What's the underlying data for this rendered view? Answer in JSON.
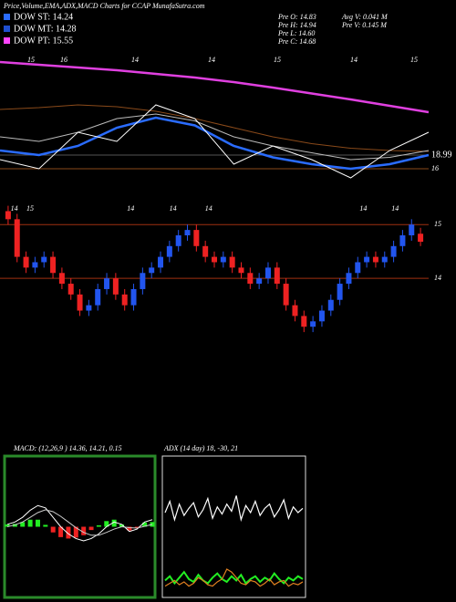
{
  "header": {
    "title": "Price,Volume,EMA,ADX,MACD Charts for CCAP MunafaSutra.com",
    "legend": [
      {
        "label": "DOW ST: 14.24",
        "color": "#2a6cff"
      },
      {
        "label": "DOW MT: 14.28",
        "color": "#1f4fd0"
      },
      {
        "label": "DOW PT: 15.55",
        "color": "#ff44ff"
      }
    ],
    "stats": [
      "Pre  O: 14.83",
      "Pre  H: 14.94",
      "Pre  L: 14.60",
      "Pre  C: 14.68",
      "Avg V: 0.041 M",
      "Pre  V: 0.145 M"
    ]
  },
  "chart_data": [
    {
      "type": "line",
      "x_labels": [
        "15",
        "16",
        "14",
        "14",
        "15",
        "14",
        "15"
      ],
      "categories": [
        null,
        null,
        null,
        null,
        null,
        null,
        null,
        null,
        null,
        null,
        null,
        null
      ],
      "ylim": [
        12,
        41
      ],
      "reference_lines": [
        18.99,
        16
      ],
      "series": [
        {
          "color": "#e040e0",
          "width": 2.5,
          "values": [
            39.4,
            38.8,
            38.2,
            37.6,
            36.8,
            36,
            35,
            33.8,
            32.5,
            31.2,
            29.8,
            28.4
          ]
        },
        {
          "color": "#8a4a1a",
          "width": 1,
          "values": [
            29,
            29.4,
            30,
            29.6,
            28.6,
            27,
            25,
            23,
            21.5,
            20.5,
            20,
            19.8
          ]
        },
        {
          "color": "#bbbbbb",
          "width": 1,
          "values": [
            23,
            22,
            24,
            27,
            28,
            26.5,
            23,
            21,
            19.5,
            18,
            18.5,
            20
          ]
        },
        {
          "color": "#2a6cff",
          "width": 2.5,
          "values": [
            20,
            19,
            21,
            25,
            27.2,
            25.5,
            21,
            18.5,
            17,
            16,
            17,
            19
          ]
        },
        {
          "color": "#ffffff",
          "width": 1,
          "values": [
            18,
            16,
            24,
            22,
            30,
            27,
            17,
            21,
            18,
            14,
            20,
            24
          ]
        }
      ]
    },
    {
      "type": "candlestick",
      "x_labels": [
        "14",
        "15",
        "14",
        "14",
        "14",
        "14",
        "14"
      ],
      "categories": [
        null,
        null,
        null,
        null,
        null,
        null,
        null,
        null,
        null,
        null,
        null,
        null,
        null,
        null,
        null,
        null,
        null,
        null,
        null,
        null,
        null,
        null,
        null,
        null,
        null,
        null,
        null,
        null,
        null,
        null,
        null,
        null,
        null,
        null,
        null,
        null,
        null,
        null,
        null,
        null,
        null,
        null,
        null,
        null,
        null,
        null,
        null
      ],
      "ylim": [
        12.9,
        15.36
      ],
      "yticks": [
        15,
        14
      ],
      "up_color": "#2255ee",
      "down_color": "#ee2222",
      "open": [
        15.25,
        15.1,
        14.4,
        14.2,
        14.3,
        14.4,
        14.1,
        13.9,
        13.7,
        13.4,
        13.5,
        13.8,
        14.0,
        13.7,
        13.5,
        13.8,
        14.1,
        14.2,
        14.4,
        14.6,
        14.8,
        14.9,
        14.6,
        14.4,
        14.3,
        14.4,
        14.2,
        14.1,
        13.9,
        14.0,
        14.2,
        13.9,
        13.5,
        13.3,
        13.1,
        13.2,
        13.4,
        13.6,
        13.9,
        14.1,
        14.3,
        14.4,
        14.3,
        14.4,
        14.6,
        14.8,
        14.83
      ],
      "high": [
        15.35,
        15.2,
        14.5,
        14.4,
        14.5,
        14.5,
        14.2,
        14.0,
        13.8,
        13.6,
        13.9,
        14.1,
        14.1,
        13.8,
        13.9,
        14.2,
        14.3,
        14.5,
        14.7,
        14.9,
        15.0,
        15.0,
        14.7,
        14.5,
        14.5,
        14.5,
        14.3,
        14.2,
        14.1,
        14.3,
        14.3,
        14.0,
        13.6,
        13.4,
        13.3,
        13.5,
        13.7,
        14.0,
        14.2,
        14.4,
        14.5,
        14.5,
        14.5,
        14.7,
        14.9,
        15.1,
        14.94
      ],
      "low": [
        15.0,
        14.3,
        14.1,
        14.1,
        14.2,
        14.0,
        13.8,
        13.6,
        13.3,
        13.3,
        13.4,
        13.7,
        13.6,
        13.4,
        13.4,
        13.7,
        14.0,
        14.1,
        14.3,
        14.5,
        14.7,
        14.5,
        14.3,
        14.2,
        14.2,
        14.1,
        14.0,
        13.8,
        13.8,
        13.9,
        13.8,
        13.4,
        13.2,
        13.0,
        13.0,
        13.1,
        13.3,
        13.5,
        13.8,
        14.0,
        14.2,
        14.2,
        14.2,
        14.3,
        14.5,
        14.7,
        14.6
      ],
      "close": [
        15.1,
        14.4,
        14.2,
        14.3,
        14.4,
        14.1,
        13.9,
        13.7,
        13.4,
        13.5,
        13.8,
        14.0,
        13.7,
        13.5,
        13.8,
        14.1,
        14.2,
        14.4,
        14.6,
        14.8,
        14.9,
        14.6,
        14.4,
        14.3,
        14.4,
        14.2,
        14.1,
        13.9,
        14.0,
        14.2,
        13.9,
        13.5,
        13.3,
        13.1,
        13.2,
        13.4,
        13.6,
        13.9,
        14.1,
        14.3,
        14.4,
        14.3,
        14.4,
        14.6,
        14.8,
        15.0,
        14.68
      ]
    },
    {
      "type": "macd",
      "title": "MACD: (12,26,9 ) 14.36, 14.21, 0.15",
      "categories": [
        null,
        null,
        null,
        null,
        null,
        null,
        null,
        null,
        null,
        null,
        null,
        null,
        null,
        null,
        null,
        null,
        null,
        null,
        null,
        null
      ],
      "ylim": [
        -1.5,
        1.5
      ],
      "series": [
        {
          "color": "#ffffff",
          "values": [
            0.05,
            0.1,
            0.2,
            0.35,
            0.45,
            0.4,
            0.2,
            0,
            -0.15,
            -0.25,
            -0.3,
            -0.25,
            -0.15,
            0,
            0.1,
            0.05,
            -0.1,
            -0.05,
            0.1,
            0.15
          ]
        },
        {
          "color": "#cccccc",
          "values": [
            0,
            0.04,
            0.1,
            0.2,
            0.3,
            0.36,
            0.32,
            0.22,
            0.1,
            -0.02,
            -0.12,
            -0.18,
            -0.18,
            -0.12,
            -0.05,
            0,
            -0.02,
            -0.03,
            0.01,
            0.05
          ]
        }
      ],
      "histogram": [
        0.05,
        0.06,
        0.1,
        0.15,
        0.15,
        0.04,
        -0.12,
        -0.22,
        -0.25,
        -0.23,
        -0.18,
        -0.07,
        0.03,
        0.12,
        0.15,
        0.05,
        -0.08,
        -0.02,
        0.09,
        0.1
      ],
      "up_color": "#22ee22",
      "down_color": "#ee2222"
    },
    {
      "type": "adx",
      "title": "ADX                (14  day) 18, -30,  21",
      "categories": [
        null,
        null,
        null,
        null,
        null,
        null,
        null,
        null,
        null,
        null,
        null,
        null,
        null,
        null,
        null,
        null,
        null,
        null,
        null,
        null,
        null,
        null,
        null,
        null,
        null,
        null,
        null,
        null,
        null,
        null
      ],
      "ylim": [
        0,
        100
      ],
      "series": [
        {
          "color": "#ffffff",
          "values": [
            60,
            68,
            55,
            66,
            58,
            63,
            67,
            57,
            62,
            70,
            56,
            64,
            59,
            66,
            61,
            72,
            55,
            65,
            60,
            68,
            58,
            63,
            66,
            57,
            62,
            69,
            56,
            64,
            60,
            63
          ]
        },
        {
          "color": "#22ee22",
          "values": [
            12,
            15,
            10,
            14,
            18,
            13,
            11,
            16,
            12,
            10,
            14,
            17,
            13,
            11,
            15,
            12,
            16,
            10,
            13,
            15,
            11,
            14,
            12,
            17,
            13,
            10,
            14,
            12,
            15,
            13
          ]
        },
        {
          "color": "#e08020",
          "values": [
            8,
            10,
            12,
            9,
            11,
            8,
            10,
            14,
            12,
            9,
            8,
            11,
            13,
            20,
            18,
            14,
            10,
            9,
            12,
            11,
            8,
            10,
            13,
            9,
            11,
            12,
            8,
            10,
            9,
            11
          ]
        }
      ]
    }
  ]
}
